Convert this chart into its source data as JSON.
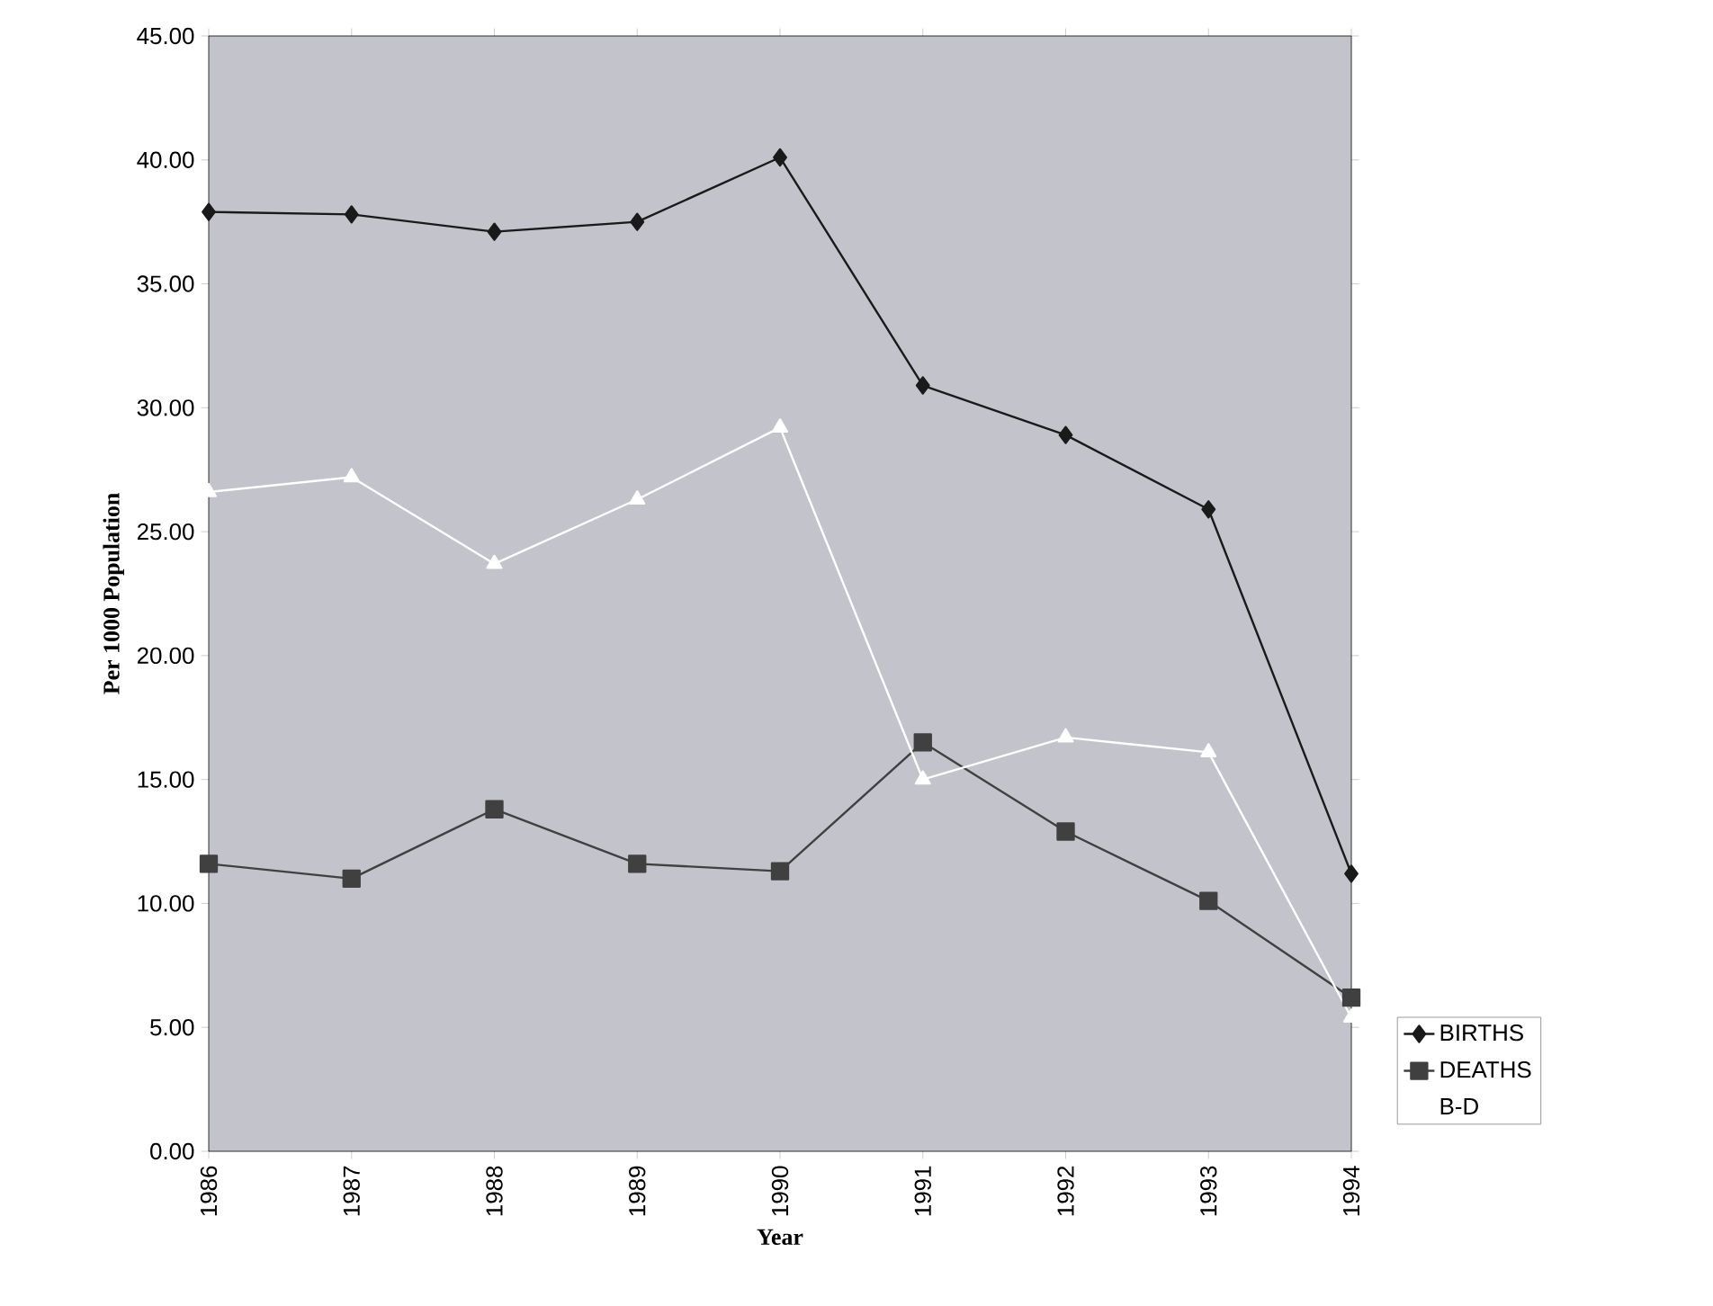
{
  "chart_data": {
    "type": "line",
    "xlabel": "Year",
    "ylabel": "Per 1000 Population",
    "categories": [
      "1986",
      "1987",
      "1988",
      "1989",
      "1990",
      "1991",
      "1992",
      "1993",
      "1994"
    ],
    "series": [
      {
        "name": "BIRTHS",
        "color": "#1a1a1a",
        "marker": "diamond",
        "values": [
          37.9,
          37.8,
          37.1,
          37.5,
          40.1,
          30.9,
          28.9,
          25.9,
          11.2
        ]
      },
      {
        "name": "DEATHS",
        "color": "#404040",
        "marker": "square",
        "values": [
          11.6,
          11.0,
          13.8,
          11.6,
          11.3,
          16.5,
          12.9,
          10.1,
          6.2
        ]
      },
      {
        "name": "B-D",
        "color": "#ffffff",
        "marker": "triangle",
        "values": [
          26.6,
          27.2,
          23.7,
          26.3,
          29.2,
          15.0,
          16.7,
          16.1,
          5.4
        ]
      }
    ],
    "ylim": [
      0,
      45
    ],
    "yticks": [
      {
        "value": 0,
        "label": "0.00"
      },
      {
        "value": 5,
        "label": "5.00"
      },
      {
        "value": 10,
        "label": "10.00"
      },
      {
        "value": 15,
        "label": "15.00"
      },
      {
        "value": 20,
        "label": "20.00"
      },
      {
        "value": 25,
        "label": "25.00"
      },
      {
        "value": 30,
        "label": "30.00"
      },
      {
        "value": 35,
        "label": "35.00"
      },
      {
        "value": 40,
        "label": "40.00"
      },
      {
        "value": 45,
        "label": "45.00"
      }
    ],
    "grid": false,
    "legend": "right",
    "line_style": "solid"
  }
}
